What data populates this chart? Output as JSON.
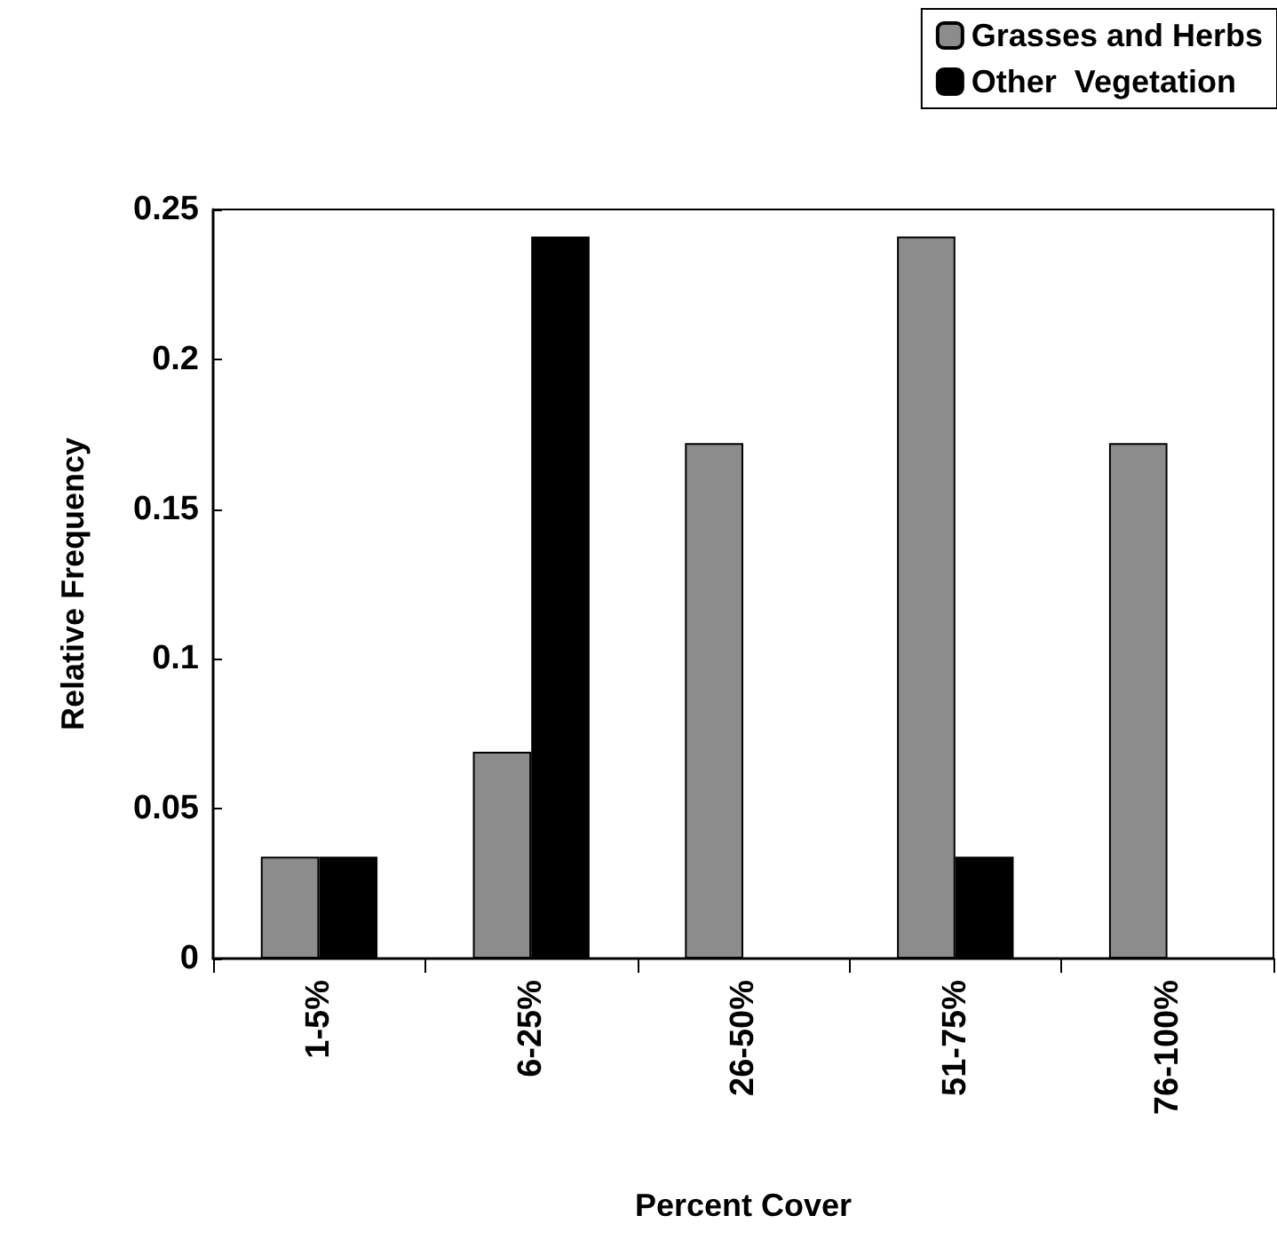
{
  "chart_data": {
    "type": "bar",
    "xlabel": "Percent Cover",
    "ylabel": "Relative Frequency",
    "categories": [
      "1-5%",
      "6-25%",
      "26-50%",
      "51-75%",
      "76-100%"
    ],
    "series": [
      {
        "name": "Grasses and Herbs",
        "color": "#8c8c8c",
        "values": [
          0.034,
          0.069,
          0.172,
          0.241,
          0.172
        ]
      },
      {
        "name": "Other  Vegetation",
        "color": "#000000",
        "values": [
          0.034,
          0.241,
          0,
          0.034,
          0
        ]
      }
    ],
    "ylim": [
      0,
      0.25
    ],
    "yticks": [
      0,
      0.05,
      0.1,
      0.15,
      0.2,
      0.25
    ],
    "grid": false,
    "legend": "top right"
  }
}
